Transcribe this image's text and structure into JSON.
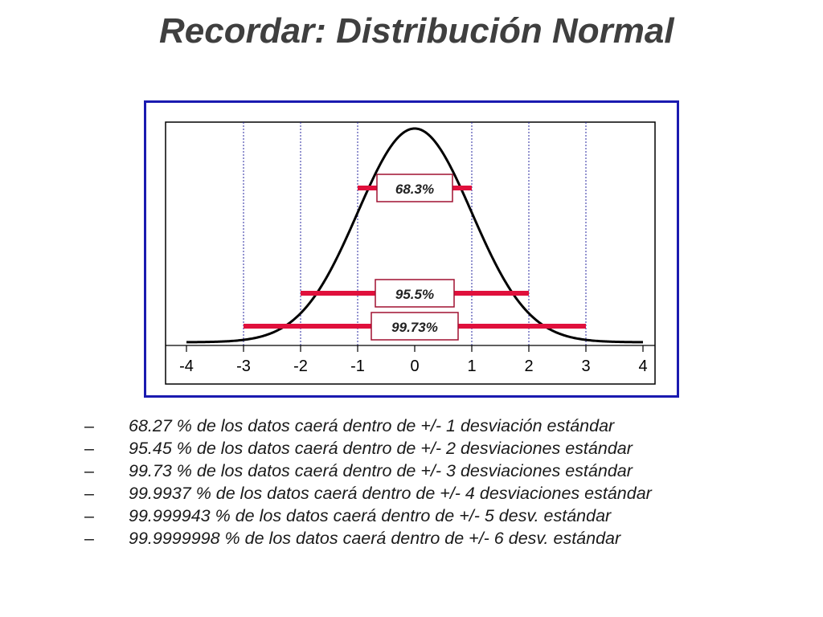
{
  "slide": {
    "title": "Recordar: Distribución Normal"
  },
  "chart_data": {
    "type": "line",
    "title": "",
    "xlabel": "",
    "ylabel": "",
    "xlim": [
      -4,
      4
    ],
    "x_ticks": [
      "-4",
      "-3",
      "-2",
      "-1",
      "0",
      "1",
      "2",
      "3",
      "4"
    ],
    "series": [
      {
        "function": "normal_pdf",
        "mean": 0,
        "sd": 1
      }
    ],
    "vertical_reference_lines": [
      -3,
      -2,
      -1,
      1,
      2,
      3
    ],
    "intervals": [
      {
        "label": "68.3%",
        "from": -1,
        "to": 1
      },
      {
        "label": "95.5%",
        "from": -2,
        "to": 2
      },
      {
        "label": "99.73%",
        "from": -3,
        "to": 3
      }
    ],
    "colors": {
      "curve": "#000000",
      "interval": "#e0103c",
      "reference_line": "#2a2aa0",
      "frame_border": "#1a1ab0"
    }
  },
  "bullets": [
    {
      "dash": "–",
      "text": "68.27 % de los datos caerá dentro de +/- 1 desviación estándar"
    },
    {
      "dash": "–",
      "text": "95.45 % de los datos caerá dentro de +/- 2 desviaciones estándar"
    },
    {
      "dash": "–",
      "text": "99.73 % de los datos caerá dentro de +/- 3 desviaciones estándar"
    },
    {
      "dash": "–",
      "text": "99.9937 % de los datos caerá dentro de +/- 4 desviaciones estándar"
    },
    {
      "dash": "–",
      "text": "99.999943 % de los datos caerá dentro de +/- 5 desv. estándar"
    },
    {
      "dash": "–",
      "text": "99.9999998 % de los datos caerá dentro de +/- 6 desv. estándar"
    }
  ]
}
